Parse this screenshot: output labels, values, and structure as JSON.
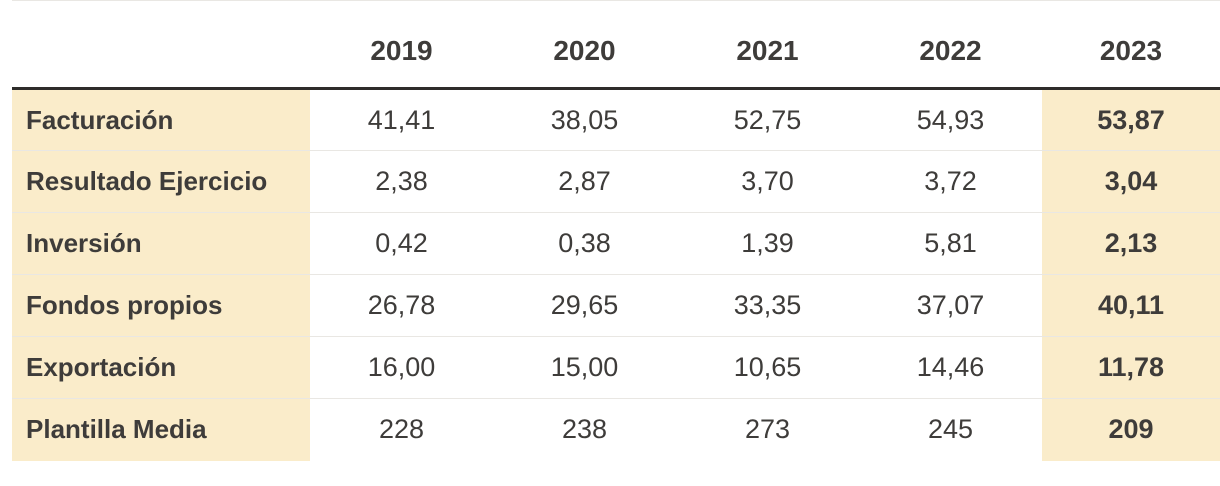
{
  "colors": {
    "highlight_bg": "#faecca",
    "text_dark": "#3e3c3a",
    "header_rule": "#2e2c2a",
    "row_rule": "#e9e7e3"
  },
  "chart_data": {
    "type": "table",
    "columns": [
      "",
      "2019",
      "2020",
      "2021",
      "2022",
      "2023"
    ],
    "rows": [
      {
        "label": "Facturación",
        "values": [
          "41,41",
          "38,05",
          "52,75",
          "54,93",
          "53,87"
        ]
      },
      {
        "label": "Resultado Ejercicio",
        "values": [
          "2,38",
          "2,87",
          "3,70",
          "3,72",
          "3,04"
        ]
      },
      {
        "label": "Inversión",
        "values": [
          "0,42",
          "0,38",
          "1,39",
          "5,81",
          "2,13"
        ]
      },
      {
        "label": "Fondos propios",
        "values": [
          "26,78",
          "29,65",
          "33,35",
          "37,07",
          "40,11"
        ]
      },
      {
        "label": "Exportación",
        "values": [
          "16,00",
          "15,00",
          "10,65",
          "14,46",
          "11,78"
        ]
      },
      {
        "label": "Plantilla Media",
        "values": [
          "228",
          "238",
          "273",
          "245",
          "209"
        ]
      }
    ],
    "notes": "Last column (2023) and row-label column are highlighted with a cream background; 2023 values and row labels are bold."
  }
}
